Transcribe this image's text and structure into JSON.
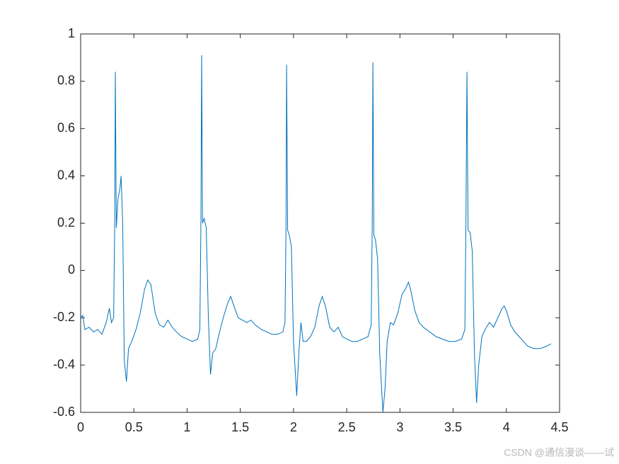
{
  "chart_data": {
    "type": "line",
    "x": [
      0,
      0.02,
      0.04,
      0.08,
      0.12,
      0.16,
      0.2,
      0.24,
      0.27,
      0.29,
      0.31,
      0.32,
      0.326,
      0.335,
      0.35,
      0.37,
      0.38,
      0.395,
      0.41,
      0.43,
      0.45,
      0.48,
      0.52,
      0.56,
      0.6,
      0.63,
      0.66,
      0.7,
      0.74,
      0.78,
      0.82,
      0.86,
      0.9,
      0.95,
      1.0,
      1.05,
      1.1,
      1.12,
      1.13,
      1.137,
      1.145,
      1.16,
      1.18,
      1.2,
      1.22,
      1.24,
      1.27,
      1.3,
      1.34,
      1.38,
      1.41,
      1.44,
      1.48,
      1.52,
      1.56,
      1.6,
      1.64,
      1.7,
      1.75,
      1.8,
      1.85,
      1.9,
      1.92,
      1.93,
      1.935,
      1.945,
      1.96,
      1.98,
      2.0,
      2.03,
      2.05,
      2.07,
      2.09,
      2.12,
      2.16,
      2.2,
      2.24,
      2.27,
      2.3,
      2.34,
      2.38,
      2.42,
      2.46,
      2.5,
      2.55,
      2.6,
      2.65,
      2.7,
      2.73,
      2.74,
      2.746,
      2.755,
      2.77,
      2.79,
      2.81,
      2.84,
      2.86,
      2.88,
      2.91,
      2.94,
      2.98,
      3.02,
      3.05,
      3.08,
      3.1,
      3.14,
      3.18,
      3.22,
      3.28,
      3.34,
      3.4,
      3.46,
      3.52,
      3.58,
      3.61,
      3.62,
      3.63,
      3.64,
      3.66,
      3.68,
      3.7,
      3.72,
      3.74,
      3.77,
      3.8,
      3.84,
      3.88,
      3.92,
      3.96,
      3.98,
      4.0,
      4.04,
      4.08,
      4.12,
      4.16,
      4.2,
      4.26,
      4.32,
      4.38,
      4.42
    ],
    "series": [
      {
        "color": "#0072bd",
        "values": [
          -0.2,
          -0.19,
          -0.25,
          -0.24,
          -0.26,
          -0.25,
          -0.27,
          -0.22,
          -0.16,
          -0.22,
          -0.2,
          0.2,
          0.84,
          0.18,
          0.3,
          0.35,
          0.4,
          0.2,
          -0.38,
          -0.47,
          -0.33,
          -0.3,
          -0.25,
          -0.18,
          -0.08,
          -0.04,
          -0.06,
          -0.18,
          -0.23,
          -0.24,
          -0.21,
          -0.24,
          -0.26,
          -0.28,
          -0.29,
          -0.3,
          -0.29,
          -0.25,
          0.2,
          0.91,
          0.2,
          0.22,
          0.18,
          -0.2,
          -0.44,
          -0.35,
          -0.33,
          -0.27,
          -0.2,
          -0.14,
          -0.11,
          -0.15,
          -0.2,
          -0.21,
          -0.22,
          -0.21,
          -0.23,
          -0.25,
          -0.26,
          -0.27,
          -0.27,
          -0.26,
          -0.22,
          0.2,
          0.87,
          0.17,
          0.15,
          0.1,
          -0.3,
          -0.53,
          -0.35,
          -0.22,
          -0.3,
          -0.3,
          -0.28,
          -0.24,
          -0.15,
          -0.11,
          -0.15,
          -0.24,
          -0.26,
          -0.24,
          -0.28,
          -0.29,
          -0.3,
          -0.3,
          -0.29,
          -0.28,
          -0.23,
          0.2,
          0.88,
          0.15,
          0.13,
          0.05,
          -0.35,
          -0.6,
          -0.5,
          -0.3,
          -0.22,
          -0.23,
          -0.18,
          -0.1,
          -0.08,
          -0.05,
          -0.08,
          -0.17,
          -0.22,
          -0.24,
          -0.26,
          -0.28,
          -0.29,
          -0.3,
          -0.3,
          -0.29,
          -0.25,
          0.2,
          0.84,
          0.17,
          0.16,
          0.08,
          -0.35,
          -0.56,
          -0.4,
          -0.28,
          -0.25,
          -0.22,
          -0.24,
          -0.2,
          -0.16,
          -0.15,
          -0.17,
          -0.23,
          -0.26,
          -0.28,
          -0.3,
          -0.32,
          -0.33,
          -0.33,
          -0.32,
          -0.31
        ]
      }
    ],
    "xlim": [
      0,
      4.5
    ],
    "xticks": [
      0,
      0.5,
      1,
      1.5,
      2,
      2.5,
      3,
      3.5,
      4,
      4.5
    ],
    "ylim": [
      -0.6,
      1
    ],
    "yticks": [
      -0.6,
      -0.4,
      -0.2,
      0,
      0.2,
      0.4,
      0.6,
      0.8,
      1
    ],
    "grid": false
  },
  "watermark": "CSDN @通信漫谈——试"
}
